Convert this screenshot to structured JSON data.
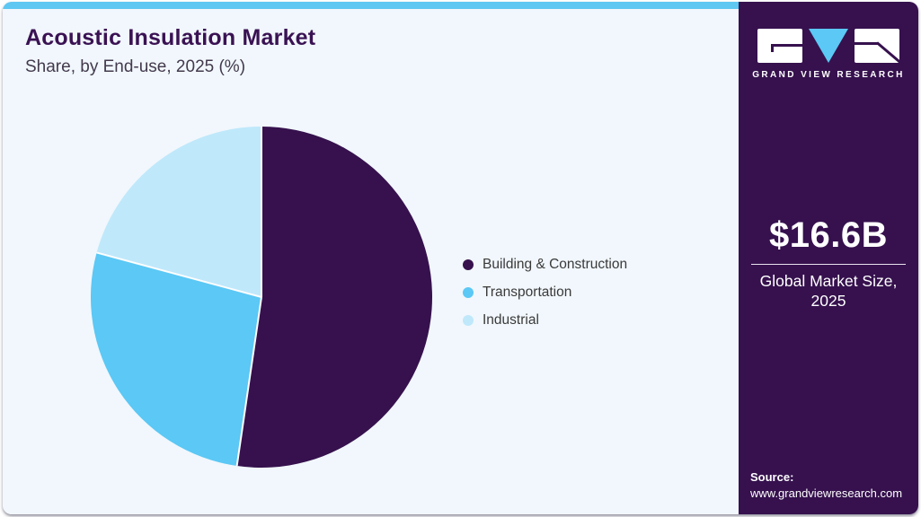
{
  "header": {
    "title": "Acoustic Insulation Market",
    "subtitle": "Share, by End-use, 2025 (%)"
  },
  "chart_data": {
    "type": "pie",
    "title": "Acoustic Insulation Market Share, by End-use, 2025 (%)",
    "categories": [
      "Building & Construction",
      "Transportation",
      "Industrial"
    ],
    "values": [
      52.3,
      26.9,
      20.8
    ],
    "unit": "%",
    "colors": [
      "#36114d",
      "#5bc8f5",
      "#bfe8fb"
    ],
    "start_angle_deg": 0,
    "direction": "clockwise",
    "legend_position": "right",
    "slice_gap_color": "#fdfdfe"
  },
  "sidebar": {
    "logo": {
      "brand": "GRAND VIEW RESEARCH",
      "triangle_color": "#5bc8f5",
      "glyph_color": "#36114e"
    },
    "market": {
      "value": "$16.6B",
      "label_line1": "Global Market Size,",
      "label_line2": "2025"
    },
    "source": {
      "label": "Source:",
      "url": "www.grandviewresearch.com"
    }
  },
  "colors": {
    "accent_bar": "#5ec7f2",
    "main_background": "#f1f7fc",
    "sidebar_background": "#36114e",
    "title_text": "#3a1253",
    "legend_text": "#3a3a3a"
  }
}
